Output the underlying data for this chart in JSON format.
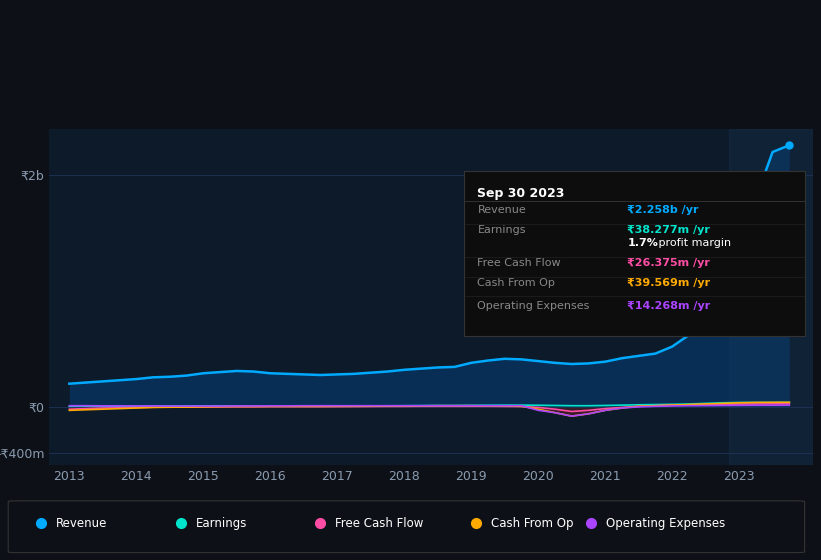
{
  "bg_color": "#0d1117",
  "plot_bg_color": "#0d1a2a",
  "grid_color": "#1e3050",
  "text_color": "#8a9bb0",
  "title_color": "#ffffff",
  "years": [
    2013,
    2013.25,
    2013.5,
    2013.75,
    2014,
    2014.25,
    2014.5,
    2014.75,
    2015,
    2015.25,
    2015.5,
    2015.75,
    2016,
    2016.25,
    2016.5,
    2016.75,
    2017,
    2017.25,
    2017.5,
    2017.75,
    2018,
    2018.25,
    2018.5,
    2018.75,
    2019,
    2019.25,
    2019.5,
    2019.75,
    2020,
    2020.25,
    2020.5,
    2020.75,
    2021,
    2021.25,
    2021.5,
    2021.75,
    2022,
    2022.25,
    2022.5,
    2022.75,
    2023,
    2023.25,
    2023.5,
    2023.75
  ],
  "revenue": [
    200,
    210,
    220,
    230,
    240,
    255,
    260,
    270,
    290,
    300,
    310,
    305,
    290,
    285,
    280,
    275,
    280,
    285,
    295,
    305,
    320,
    330,
    340,
    345,
    380,
    400,
    415,
    410,
    395,
    380,
    370,
    375,
    390,
    420,
    440,
    460,
    520,
    620,
    780,
    1000,
    1400,
    1800,
    2200,
    2258
  ],
  "earnings": [
    5,
    6,
    5,
    5,
    6,
    7,
    7,
    8,
    8,
    9,
    9,
    8,
    7,
    7,
    6,
    6,
    7,
    8,
    8,
    9,
    10,
    11,
    12,
    12,
    13,
    14,
    15,
    15,
    14,
    12,
    10,
    10,
    12,
    15,
    18,
    20,
    22,
    25,
    30,
    35,
    38,
    38,
    38,
    38.277
  ],
  "free_cash_flow": [
    -20,
    -15,
    -10,
    -8,
    -5,
    -3,
    -2,
    -2,
    -1,
    0,
    1,
    1,
    2,
    2,
    2,
    2,
    2,
    3,
    3,
    4,
    4,
    5,
    5,
    5,
    5,
    5,
    4,
    3,
    -5,
    -20,
    -40,
    -30,
    -15,
    -5,
    5,
    10,
    15,
    18,
    20,
    22,
    24,
    25,
    26,
    26.375
  ],
  "cash_from_op": [
    -30,
    -25,
    -20,
    -15,
    -10,
    -5,
    -3,
    -2,
    0,
    2,
    3,
    3,
    4,
    4,
    4,
    4,
    5,
    5,
    6,
    7,
    8,
    9,
    10,
    10,
    10,
    9,
    8,
    5,
    -20,
    -50,
    -80,
    -60,
    -30,
    -10,
    5,
    10,
    15,
    20,
    25,
    30,
    35,
    38,
    39,
    39.569
  ],
  "operating_expenses": [
    10,
    10,
    9,
    9,
    8,
    8,
    7,
    7,
    7,
    7,
    8,
    8,
    9,
    9,
    10,
    10,
    10,
    10,
    10,
    10,
    10,
    10,
    10,
    10,
    10,
    10,
    10,
    10,
    -30,
    -50,
    -80,
    -60,
    -30,
    -10,
    0,
    5,
    8,
    10,
    11,
    12,
    13,
    14,
    14,
    14.268
  ],
  "revenue_color": "#00aaff",
  "earnings_color": "#00e5cc",
  "free_cash_flow_color": "#ff4da6",
  "cash_from_op_color": "#ffaa00",
  "operating_expenses_color": "#aa44ff",
  "revenue_fill_color": "#0055aa",
  "cash_from_op_fill_neg_color": "#552200",
  "ytick_labels": [
    "-₹400m",
    "₹0",
    "₹2b"
  ],
  "ytick_vals": [
    -400,
    0,
    2000
  ],
  "xtick_years": [
    2013,
    2014,
    2015,
    2016,
    2017,
    2018,
    2019,
    2020,
    2021,
    2022,
    2023
  ],
  "tooltip_title": "Sep 30 2023",
  "tooltip_rows": [
    {
      "label": "Revenue",
      "value": "₹2.258b /yr",
      "value_color": "#00aaff"
    },
    {
      "label": "Earnings",
      "value": "₹38.277m /yr",
      "value_color": "#00e5cc"
    },
    {
      "label": "",
      "value": "1.7% profit margin",
      "value_color": "#ffffff",
      "bold_prefix": "1.7%"
    },
    {
      "label": "Free Cash Flow",
      "value": "₹26.375m /yr",
      "value_color": "#ff4da6"
    },
    {
      "label": "Cash From Op",
      "value": "₹39.569m /yr",
      "value_color": "#ffaa00"
    },
    {
      "label": "Operating Expenses",
      "value": "₹14.268m /yr",
      "value_color": "#aa44ff"
    }
  ],
  "legend_items": [
    {
      "label": "Revenue",
      "color": "#00aaff"
    },
    {
      "label": "Earnings",
      "color": "#00e5cc"
    },
    {
      "label": "Free Cash Flow",
      "color": "#ff4da6"
    },
    {
      "label": "Cash From Op",
      "color": "#ffaa00"
    },
    {
      "label": "Operating Expenses",
      "color": "#aa44ff"
    }
  ]
}
